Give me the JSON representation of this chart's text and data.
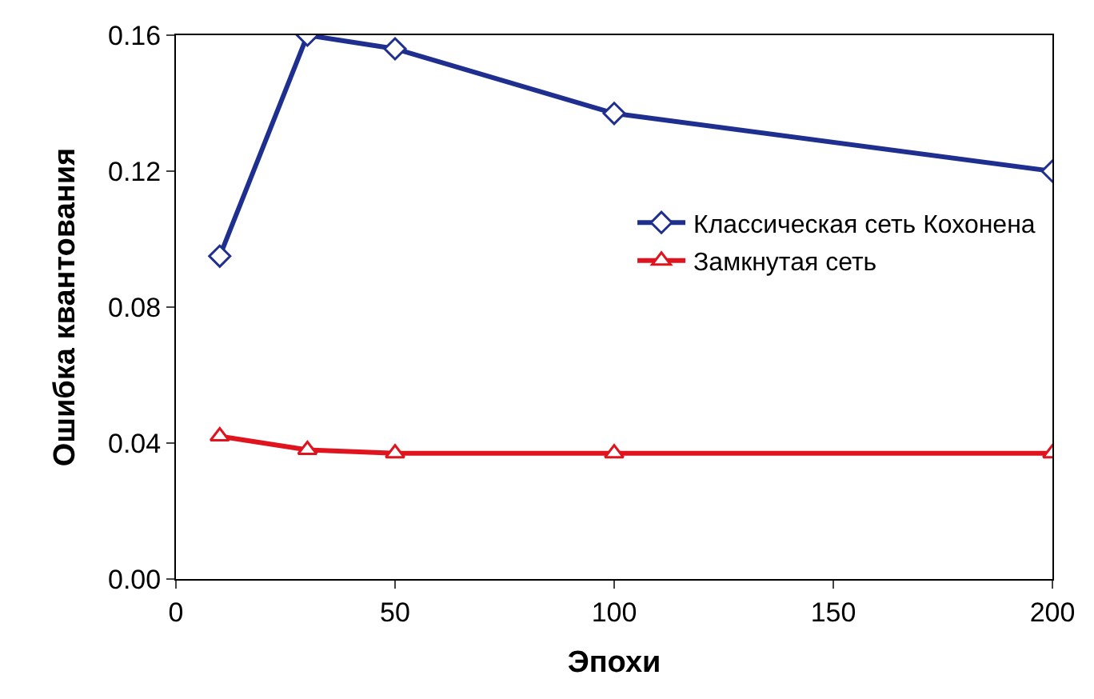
{
  "chart_data": {
    "type": "line",
    "xlabel": "Эпохи",
    "ylabel": "Ошибка квантования",
    "x": [
      10,
      30,
      50,
      100,
      200
    ],
    "series": [
      {
        "name": "Классическая сеть Кохонена",
        "color": "#1f2f8f",
        "marker": "diamond",
        "values": [
          0.095,
          0.16,
          0.156,
          0.137,
          0.12
        ]
      },
      {
        "name": "Замкнутая сеть",
        "color": "#e0141e",
        "marker": "triangle",
        "values": [
          0.042,
          0.038,
          0.037,
          0.037,
          0.037
        ]
      }
    ],
    "xlim": [
      0,
      200
    ],
    "xticks": [
      0,
      50,
      100,
      150,
      200
    ],
    "ylim": [
      0,
      0.16
    ],
    "yticks": [
      {
        "value": 0,
        "label": "0.00"
      },
      {
        "value": 0.04,
        "label": "0.04"
      },
      {
        "value": 0.08,
        "label": "0.08"
      },
      {
        "value": 0.12,
        "label": "0.12"
      },
      {
        "value": 0.16,
        "label": "0.16"
      }
    ],
    "legend": "right",
    "line_style": "solid"
  }
}
